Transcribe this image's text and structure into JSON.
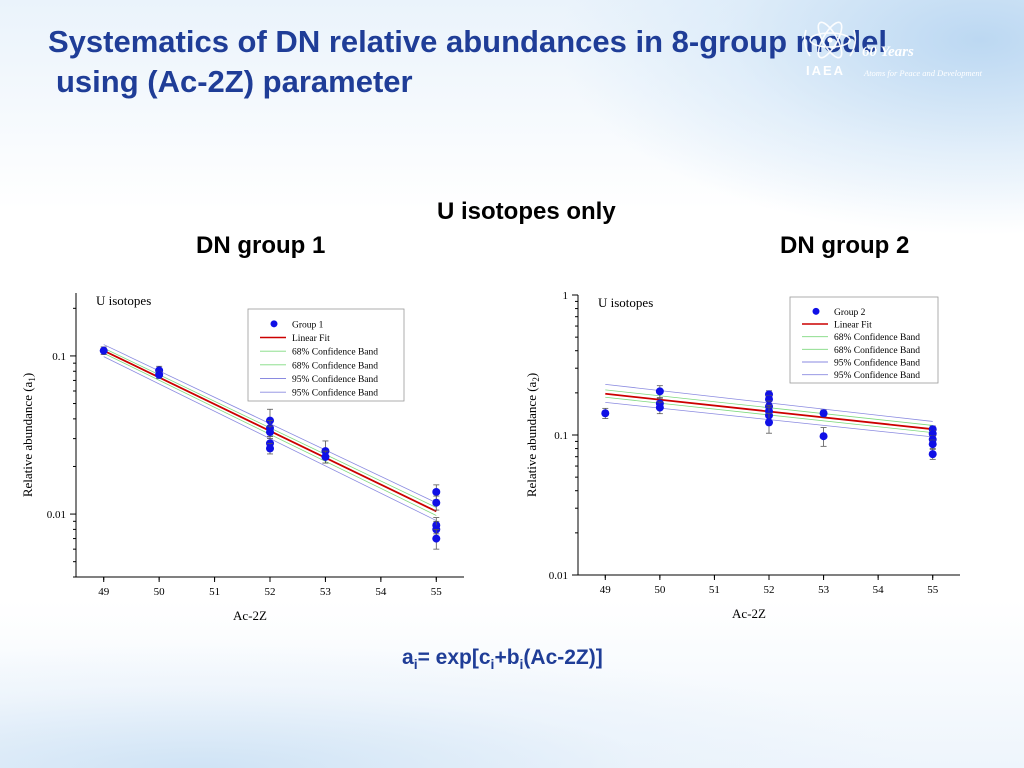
{
  "slide": {
    "title_line1": "Systematics of DN relative abundances in 8-group model",
    "title_line2": "using (Ac-2Z) parameter",
    "logo": {
      "org": "IAEA",
      "years": "60 Years",
      "tagline": "Atoms for Peace and Development"
    },
    "heading_main": "U isotopes only",
    "heading_group1": "DN group 1",
    "heading_group2": "DN group 2",
    "formula": {
      "a": "a",
      "eq": "= exp[c",
      "plus": "+b",
      "tail": "(Ac-2Z)]",
      "sub": "i"
    }
  },
  "chart_data": [
    {
      "type": "scatter",
      "id": "group1",
      "annotation": "U isotopes",
      "xlabel": "Ac-2Z",
      "ylabel": "Relative abundance (a",
      "ylabel_sub": "1",
      "ylabel_close": ")",
      "xlim": [
        48.5,
        55.5
      ],
      "ylim": [
        0.004,
        0.25
      ],
      "yscale": "log",
      "xticks": [
        49,
        50,
        51,
        52,
        53,
        54,
        55
      ],
      "yticks": [
        {
          "value": 0.1,
          "label": "0.1"
        },
        {
          "value": 0.01,
          "label": "0.01"
        }
      ],
      "legend_position": "top-right",
      "legend": [
        "Group 1",
        "Linear Fit",
        "68% Confidence Band",
        "68% Confidence Band",
        "95% Confidence Band",
        "95% Confidence Band"
      ],
      "colors": {
        "points": "#1010e6",
        "fit": "#cc0000",
        "band68": "#7fd97f",
        "band95": "#8a8ae0"
      },
      "points": [
        {
          "x": 49,
          "y": 0.108,
          "err": 0.006
        },
        {
          "x": 50,
          "y": 0.081,
          "err": 0.005
        },
        {
          "x": 50,
          "y": 0.076,
          "err": 0.004
        },
        {
          "x": 52,
          "y": 0.039,
          "err": 0.007
        },
        {
          "x": 52,
          "y": 0.035,
          "err": 0.004
        },
        {
          "x": 52,
          "y": 0.033,
          "err": 0.003
        },
        {
          "x": 52,
          "y": 0.028,
          "err": 0.003
        },
        {
          "x": 52,
          "y": 0.026,
          "err": 0.002
        },
        {
          "x": 53,
          "y": 0.025,
          "err": 0.004
        },
        {
          "x": 53,
          "y": 0.023,
          "err": 0.002
        },
        {
          "x": 55,
          "y": 0.0138,
          "err": 0.0015
        },
        {
          "x": 55,
          "y": 0.0118,
          "err": 0.0012
        },
        {
          "x": 55,
          "y": 0.0085,
          "err": 0.001
        },
        {
          "x": 55,
          "y": 0.008,
          "err": 0.001
        },
        {
          "x": 55,
          "y": 0.007,
          "err": 0.001
        }
      ],
      "fit": {
        "x": [
          49,
          55
        ],
        "y": [
          0.108,
          0.0104
        ]
      },
      "band68": {
        "upper": [
          0.112,
          0.011
        ],
        "lower": [
          0.104,
          0.0098
        ]
      },
      "band95": {
        "upper": [
          0.118,
          0.0118
        ],
        "lower": [
          0.099,
          0.0091
        ]
      }
    },
    {
      "type": "scatter",
      "id": "group2",
      "annotation": "U isotopes",
      "xlabel": "Ac-2Z",
      "ylabel": "Relative abundance (a",
      "ylabel_sub": "2",
      "ylabel_close": ")",
      "xlim": [
        48.5,
        55.5
      ],
      "ylim": [
        0.01,
        1
      ],
      "yscale": "log",
      "xticks": [
        49,
        50,
        51,
        52,
        53,
        54,
        55
      ],
      "yticks": [
        {
          "value": 1,
          "label": "1"
        },
        {
          "value": 0.1,
          "label": "0.1"
        },
        {
          "value": 0.01,
          "label": "0.01"
        }
      ],
      "legend_position": "top-right",
      "legend": [
        "Group 2",
        "Linear Fit",
        "68% Confidence Band",
        "68% Confidence Band",
        "95% Confidence Band",
        "95% Confidence Band"
      ],
      "colors": {
        "points": "#1010e6",
        "fit": "#cc0000",
        "band68": "#7fd97f",
        "band95": "#8a8ae0"
      },
      "points": [
        {
          "x": 49,
          "y": 0.143,
          "err": 0.012
        },
        {
          "x": 50,
          "y": 0.205,
          "err": 0.02
        },
        {
          "x": 50,
          "y": 0.168,
          "err": 0.015
        },
        {
          "x": 50,
          "y": 0.157,
          "err": 0.015
        },
        {
          "x": 52,
          "y": 0.195,
          "err": 0.012
        },
        {
          "x": 52,
          "y": 0.18,
          "err": 0.012
        },
        {
          "x": 52,
          "y": 0.16,
          "err": 0.015
        },
        {
          "x": 52,
          "y": 0.148,
          "err": 0.015
        },
        {
          "x": 52,
          "y": 0.138,
          "err": 0.02
        },
        {
          "x": 52,
          "y": 0.123,
          "err": 0.02
        },
        {
          "x": 53,
          "y": 0.143,
          "err": 0.008
        },
        {
          "x": 53,
          "y": 0.098,
          "err": 0.015
        },
        {
          "x": 55,
          "y": 0.11,
          "err": 0.006
        },
        {
          "x": 55,
          "y": 0.102,
          "err": 0.006
        },
        {
          "x": 55,
          "y": 0.093,
          "err": 0.006
        },
        {
          "x": 55,
          "y": 0.086,
          "err": 0.006
        },
        {
          "x": 55,
          "y": 0.073,
          "err": 0.006
        }
      ],
      "fit": {
        "x": [
          49,
          55
        ],
        "y": [
          0.197,
          0.11
        ]
      },
      "band68": {
        "upper": [
          0.21,
          0.117
        ],
        "lower": [
          0.186,
          0.104
        ]
      },
      "band95": {
        "upper": [
          0.23,
          0.125
        ],
        "lower": [
          0.171,
          0.097
        ]
      }
    }
  ]
}
